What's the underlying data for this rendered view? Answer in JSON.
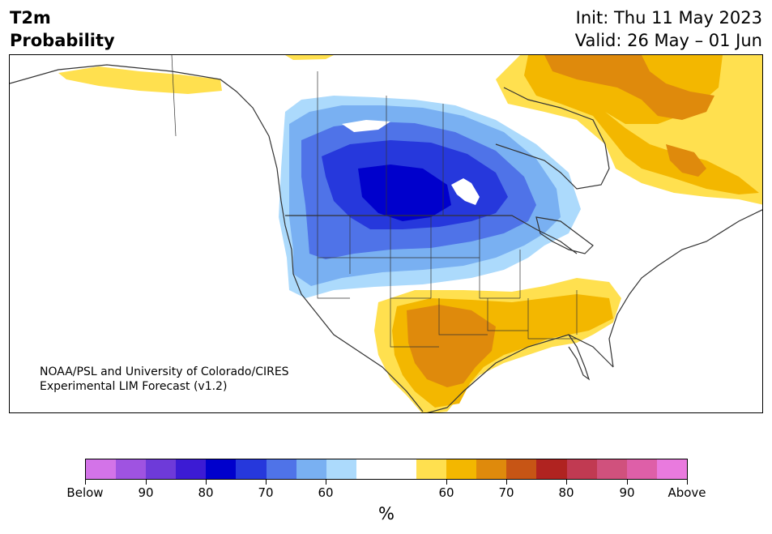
{
  "header": {
    "title_line1": "T2m",
    "title_line2": "Probability",
    "init_label": "Init: Thu 11 May 2023",
    "valid_label": "Valid: 26 May – 01 Jun"
  },
  "credit": {
    "line1": "NOAA/PSL and University of Colorado/CIRES",
    "line2": "Experimental LIM Forecast (v1.2)"
  },
  "colorbar": {
    "unit": "%",
    "colors": [
      "#d373e8",
      "#9f53e1",
      "#6e3ad9",
      "#3c1bd4",
      "#0000cc",
      "#2638dc",
      "#4f73e8",
      "#79b0f2",
      "#acdafc",
      "#ffffff",
      "#ffffff",
      "#ffe04f",
      "#f3b700",
      "#df8a0c",
      "#c75515",
      "#b02320",
      "#c13a52",
      "#d0517d",
      "#de5fa8",
      "#e97ade"
    ],
    "tick_labels": [
      "Below",
      "90",
      "80",
      "70",
      "60",
      "60",
      "70",
      "80",
      "90",
      "Above"
    ]
  },
  "map": {
    "region": "North America",
    "cold_colors": {
      "c60": "#acdafc",
      "c65": "#79b0f2",
      "c70": "#4f73e8",
      "c75": "#2638dc",
      "c80": "#0000cc"
    },
    "warm_colors": {
      "w60": "#ffe04f",
      "w65": "#f3b700",
      "w70": "#df8a0c"
    }
  }
}
